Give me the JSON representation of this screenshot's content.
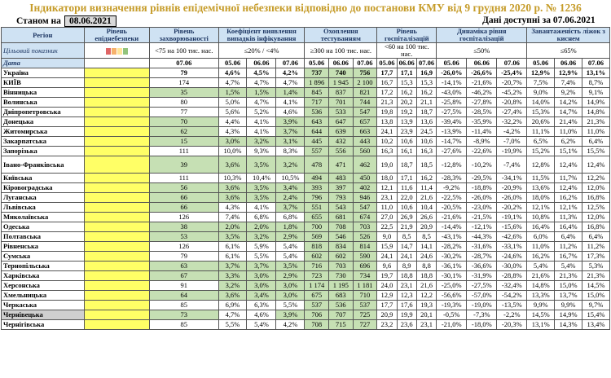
{
  "title": "Індикатори визначення рівнів епідемічної небезпеки відповідно до постанови КМУ від 9 грудня 2020 р. № 1236",
  "status_label": "Станом на",
  "status_date": "08.06.2021",
  "data_available": "Дані доступні за 07.06.2021",
  "headers": {
    "region": "Регіон",
    "danger": "Рівень епіднебезпеки",
    "incidence": "Рівень захворюваності",
    "coef": "Коефіцієнт виявлення випадків інфікування",
    "testing": "Охоплення тестуванням",
    "hosp": "Рівень госпіталізацій",
    "dyn": "Динаміка рівня госпіталізацій",
    "beds": "Завантаженість ліжок з киснем"
  },
  "target_label": "Цільовий показник",
  "targets": {
    "incidence": "<75 на 100 тис. нас.",
    "coef": "≤20% / <4%",
    "testing": "≥300 на 100 тис. нас.",
    "hosp": "<60 на 100 тис. нас.",
    "dyn": "≤50%",
    "beds": "≤65%"
  },
  "legend_colors": [
    "#e06666",
    "#f6b26b",
    "#ffe599",
    "#93c47d"
  ],
  "date_label": "Дата",
  "dates3": [
    "05.06",
    "06.06",
    "07.06"
  ],
  "date1": "07.06",
  "rows": [
    {
      "name": "Україна",
      "inc": "79",
      "coef": [
        "4,6%",
        "4,5%",
        "4,2%"
      ],
      "test": [
        "737",
        "740",
        "756"
      ],
      "hosp": [
        "17,7",
        "17,1",
        "16,9"
      ],
      "dyn": [
        "-26,0%",
        "-26,6%",
        "-25,4%"
      ],
      "beds": [
        "12,9%",
        "12,9%",
        "13,1%"
      ]
    },
    {
      "name": "КИЇВ",
      "inc": "174",
      "coef": [
        "4,7%",
        "4,7%",
        "4,7%"
      ],
      "test": [
        "1 896",
        "1 945",
        "2 100"
      ],
      "hosp": [
        "16,7",
        "15,3",
        "15,3"
      ],
      "dyn": [
        "-14,1%",
        "-21,6%",
        "-20,7%"
      ],
      "beds": [
        "7,5%",
        "7,4%",
        "8,7%"
      ]
    },
    {
      "name": "Вінницька",
      "inc": "35",
      "coef": [
        "1,5%",
        "1,5%",
        "1,4%"
      ],
      "test": [
        "845",
        "837",
        "821"
      ],
      "hosp": [
        "17,2",
        "16,2",
        "16,2"
      ],
      "dyn": [
        "-43,0%",
        "-46,2%",
        "-45,2%"
      ],
      "beds": [
        "9,0%",
        "9,2%",
        "9,1%"
      ]
    },
    {
      "name": "Волинська",
      "inc": "80",
      "coef": [
        "5,0%",
        "4,7%",
        "4,1%"
      ],
      "test": [
        "717",
        "701",
        "744"
      ],
      "hosp": [
        "21,3",
        "20,2",
        "21,1"
      ],
      "dyn": [
        "-25,8%",
        "-27,8%",
        "-20,8%"
      ],
      "beds": [
        "14,0%",
        "14,2%",
        "14,9%"
      ]
    },
    {
      "name": "Дніпропетровська",
      "inc": "77",
      "coef": [
        "5,6%",
        "5,2%",
        "4,6%"
      ],
      "test": [
        "536",
        "533",
        "547"
      ],
      "hosp": [
        "19,8",
        "19,2",
        "18,7"
      ],
      "dyn": [
        "-27,5%",
        "-28,5%",
        "-27,4%"
      ],
      "beds": [
        "15,3%",
        "14,7%",
        "14,8%"
      ]
    },
    {
      "name": "Донецька",
      "inc": "70",
      "coef": [
        "4,4%",
        "4,1%",
        "3,9%"
      ],
      "test": [
        "643",
        "647",
        "657"
      ],
      "hosp": [
        "13,8",
        "13,9",
        "13,6"
      ],
      "dyn": [
        "-39,4%",
        "-35,9%",
        "-32,2%"
      ],
      "beds": [
        "20,6%",
        "21,4%",
        "21,3%"
      ]
    },
    {
      "name": "Житомирська",
      "inc": "62",
      "coef": [
        "4,3%",
        "4,1%",
        "3,7%"
      ],
      "test": [
        "644",
        "639",
        "663"
      ],
      "hosp": [
        "24,1",
        "23,9",
        "24,5"
      ],
      "dyn": [
        "-13,9%",
        "-11,4%",
        "-4,2%"
      ],
      "beds": [
        "11,1%",
        "11,0%",
        "11,0%"
      ]
    },
    {
      "name": "Закарпатська",
      "inc": "15",
      "coef": [
        "3,0%",
        "3,2%",
        "3,1%"
      ],
      "test": [
        "445",
        "432",
        "443"
      ],
      "hosp": [
        "10,2",
        "10,6",
        "10,6"
      ],
      "dyn": [
        "-14,7%",
        "-8,9%",
        "-7,0%"
      ],
      "beds": [
        "6,5%",
        "6,2%",
        "6,4%"
      ]
    },
    {
      "name": "Запорізька",
      "inc": "111",
      "coef": [
        "10,0%",
        "9,3%",
        "8,3%"
      ],
      "test": [
        "557",
        "556",
        "560"
      ],
      "hosp": [
        "16,3",
        "16,1",
        "16,3"
      ],
      "dyn": [
        "-27,6%",
        "-22,6%",
        "-19,9%"
      ],
      "beds": [
        "15,2%",
        "15,1%",
        "15,5%"
      ]
    },
    {
      "name": "Івано-Франківська",
      "inc": "39",
      "coef": [
        "3,6%",
        "3,5%",
        "3,2%"
      ],
      "test": [
        "478",
        "471",
        "462"
      ],
      "hosp": [
        "19,0",
        "18,7",
        "18,5"
      ],
      "dyn": [
        "-12,8%",
        "-10,2%",
        "-7,4%"
      ],
      "beds": [
        "12,8%",
        "12,4%",
        "12,4%"
      ]
    },
    {
      "name": "Київська",
      "inc": "111",
      "coef": [
        "10,3%",
        "10,4%",
        "10,5%"
      ],
      "test": [
        "494",
        "483",
        "450"
      ],
      "hosp": [
        "18,0",
        "17,1",
        "16,2"
      ],
      "dyn": [
        "-28,3%",
        "-29,5%",
        "-34,1%"
      ],
      "beds": [
        "11,5%",
        "11,7%",
        "12,2%"
      ]
    },
    {
      "name": "Кіровоградська",
      "inc": "56",
      "coef": [
        "3,6%",
        "3,5%",
        "3,4%"
      ],
      "test": [
        "393",
        "397",
        "402"
      ],
      "hosp": [
        "12,1",
        "11,6",
        "11,4"
      ],
      "dyn": [
        "-9,2%",
        "-18,8%",
        "-20,9%"
      ],
      "beds": [
        "13,6%",
        "12,4%",
        "12,0%"
      ]
    },
    {
      "name": "Луганська",
      "inc": "66",
      "coef": [
        "3,6%",
        "3,5%",
        "2,4%"
      ],
      "test": [
        "796",
        "793",
        "946"
      ],
      "hosp": [
        "23,1",
        "22,0",
        "21,6"
      ],
      "dyn": [
        "-22,5%",
        "-26,0%",
        "-26,0%"
      ],
      "beds": [
        "18,0%",
        "16,2%",
        "16,8%"
      ]
    },
    {
      "name": "Львівська",
      "inc": "66",
      "coef": [
        "4,3%",
        "4,1%",
        "3,7%"
      ],
      "test": [
        "551",
        "543",
        "547"
      ],
      "hosp": [
        "11,0",
        "10,6",
        "10,4"
      ],
      "dyn": [
        "-20,5%",
        "-23,0%",
        "-20,2%"
      ],
      "beds": [
        "12,1%",
        "12,1%",
        "12,5%"
      ]
    },
    {
      "name": "Миколаївська",
      "inc": "126",
      "coef": [
        "7,4%",
        "6,8%",
        "6,8%"
      ],
      "test": [
        "655",
        "681",
        "674"
      ],
      "hosp": [
        "27,0",
        "26,9",
        "26,6"
      ],
      "dyn": [
        "-21,6%",
        "-21,5%",
        "-19,1%"
      ],
      "beds": [
        "10,8%",
        "11,3%",
        "12,0%"
      ]
    },
    {
      "name": "Одеська",
      "inc": "38",
      "coef": [
        "2,0%",
        "2,0%",
        "1,8%"
      ],
      "test": [
        "700",
        "708",
        "703"
      ],
      "hosp": [
        "22,5",
        "21,9",
        "20,9"
      ],
      "dyn": [
        "-14,4%",
        "-12,1%",
        "-15,6%"
      ],
      "beds": [
        "16,4%",
        "16,4%",
        "16,8%"
      ]
    },
    {
      "name": "Полтавська",
      "inc": "53",
      "coef": [
        "3,5%",
        "3,2%",
        "2,9%"
      ],
      "test": [
        "569",
        "546",
        "526"
      ],
      "hosp": [
        "9,0",
        "8,5",
        "8,5"
      ],
      "dyn": [
        "-43,1%",
        "-44,3%",
        "-42,6%"
      ],
      "beds": [
        "6,0%",
        "6,4%",
        "6,4%"
      ]
    },
    {
      "name": "Рівненська",
      "inc": "126",
      "coef": [
        "6,1%",
        "5,9%",
        "5,4%"
      ],
      "test": [
        "818",
        "834",
        "814"
      ],
      "hosp": [
        "15,9",
        "14,7",
        "14,1"
      ],
      "dyn": [
        "-28,2%",
        "-31,6%",
        "-33,1%"
      ],
      "beds": [
        "11,0%",
        "11,2%",
        "11,2%"
      ]
    },
    {
      "name": "Сумська",
      "inc": "79",
      "coef": [
        "6,1%",
        "5,5%",
        "5,4%"
      ],
      "test": [
        "602",
        "602",
        "590"
      ],
      "hosp": [
        "24,1",
        "24,1",
        "24,6"
      ],
      "dyn": [
        "-30,2%",
        "-28,7%",
        "-24,6%"
      ],
      "beds": [
        "16,2%",
        "16,7%",
        "17,3%"
      ]
    },
    {
      "name": "Тернопільська",
      "inc": "63",
      "coef": [
        "3,7%",
        "3,7%",
        "3,5%"
      ],
      "test": [
        "716",
        "703",
        "696"
      ],
      "hosp": [
        "9,6",
        "8,9",
        "8,8"
      ],
      "dyn": [
        "-36,1%",
        "-36,6%",
        "-30,0%"
      ],
      "beds": [
        "5,4%",
        "5,4%",
        "5,3%"
      ]
    },
    {
      "name": "Харківська",
      "inc": "67",
      "coef": [
        "3,3%",
        "3,0%",
        "2,9%"
      ],
      "test": [
        "723",
        "730",
        "734"
      ],
      "hosp": [
        "19,7",
        "18,8",
        "18,8"
      ],
      "dyn": [
        "-30,1%",
        "-31,9%",
        "-28,8%"
      ],
      "beds": [
        "21,6%",
        "21,3%",
        "21,3%"
      ]
    },
    {
      "name": "Херсонська",
      "inc": "91",
      "coef": [
        "3,2%",
        "3,0%",
        "3,0%"
      ],
      "test": [
        "1 174",
        "1 195",
        "1 181"
      ],
      "hosp": [
        "24,0",
        "23,1",
        "21,6"
      ],
      "dyn": [
        "-25,0%",
        "-27,5%",
        "-32,4%"
      ],
      "beds": [
        "14,8%",
        "15,0%",
        "14,5%"
      ]
    },
    {
      "name": "Хмельницька",
      "inc": "64",
      "coef": [
        "3,6%",
        "3,4%",
        "3,0%"
      ],
      "test": [
        "675",
        "683",
        "710"
      ],
      "hosp": [
        "12,9",
        "12,3",
        "12,2"
      ],
      "dyn": [
        "-56,6%",
        "-57,0%",
        "-54,2%"
      ],
      "beds": [
        "13,3%",
        "13,7%",
        "15,0%"
      ]
    },
    {
      "name": "Черкаська",
      "inc": "85",
      "coef": [
        "6,9%",
        "6,3%",
        "5,5%"
      ],
      "test": [
        "537",
        "536",
        "537"
      ],
      "hosp": [
        "17,7",
        "17,6",
        "19,3"
      ],
      "dyn": [
        "-19,3%",
        "-19,0%",
        "-13,5%"
      ],
      "beds": [
        "9,9%",
        "9,9%",
        "9,7%"
      ]
    },
    {
      "name": "Чернівецька",
      "inc": "73",
      "coef": [
        "4,7%",
        "4,6%",
        "3,9%"
      ],
      "test": [
        "706",
        "707",
        "725"
      ],
      "hosp": [
        "20,9",
        "19,9",
        "20,1"
      ],
      "dyn": [
        "-0,5%",
        "-7,3%",
        "-2,2%"
      ],
      "beds": [
        "14,5%",
        "14,9%",
        "15,4%"
      ]
    },
    {
      "name": "Чернігівська",
      "inc": "85",
      "coef": [
        "5,5%",
        "5,4%",
        "4,2%"
      ],
      "test": [
        "708",
        "715",
        "727"
      ],
      "hosp": [
        "23,2",
        "23,6",
        "23,1"
      ],
      "dyn": [
        "-21,0%",
        "-18,0%",
        "-20,3%"
      ],
      "beds": [
        "13,1%",
        "14,3%",
        "13,4%"
      ]
    }
  ]
}
